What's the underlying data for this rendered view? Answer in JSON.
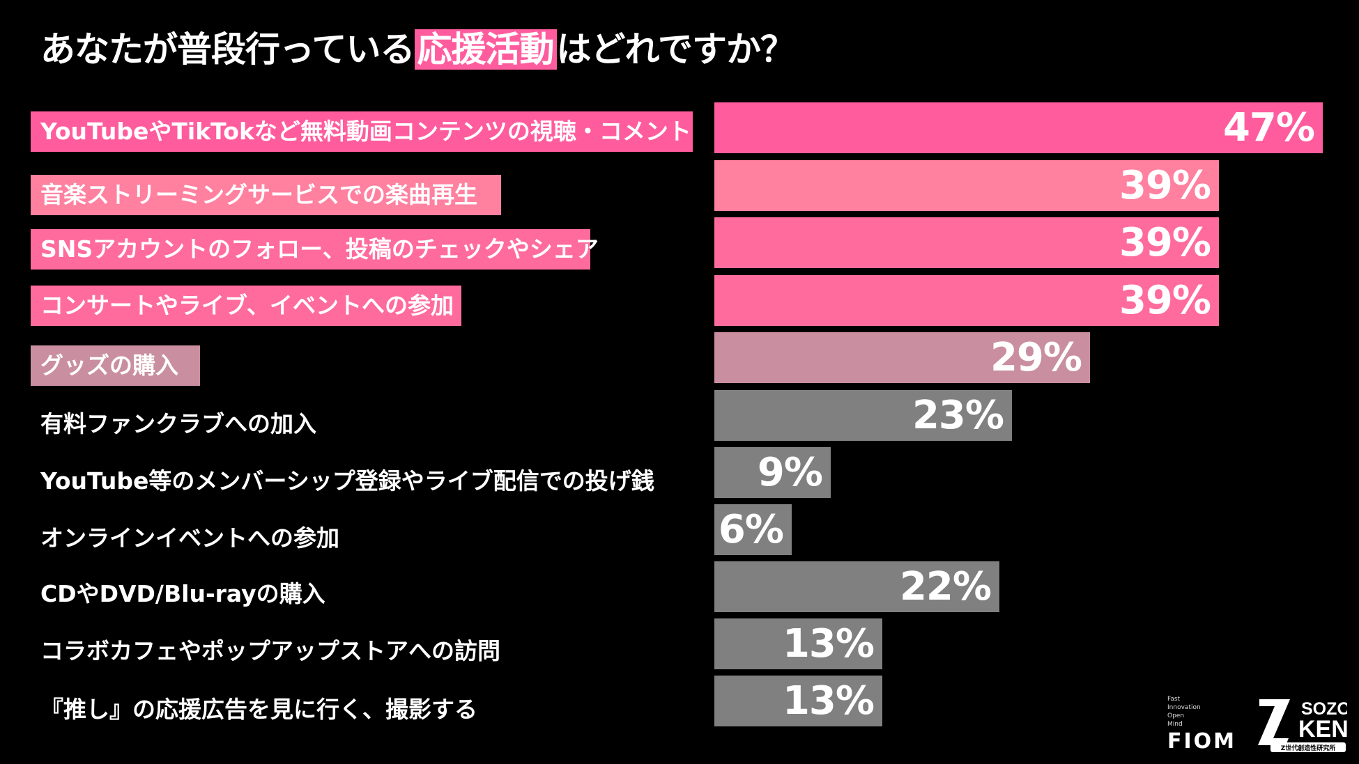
{
  "title": {
    "before": "あなたが普段行っている",
    "highlight": "応援活動",
    "after": "はどれですか？"
  },
  "chart_data": {
    "type": "bar",
    "orientation": "horizontal",
    "title": "あなたが普段行っている応援活動はどれですか？",
    "categories": [
      "YouTubeやTikTokなど無料動画コンテンツの視聴・コメント",
      "音楽ストリーミングサービスでの楽曲再生",
      "SNSアカウントのフォロー、投稿のチェックやシェア",
      "コンサートやライブ、イベントへの参加",
      "グッズの購入",
      "有料ファンクラブへの加入",
      "YouTube等のメンバーシップ登録やライブ配信での投げ銭",
      "オンラインイベントへの参加",
      "CDやDVD/Blu-rayの購入",
      "コラボカフェやポップアップストアへの訪問",
      "『推し』の応援広告を見に行く、撮影する"
    ],
    "values": [
      47,
      39,
      39,
      39,
      29,
      23,
      9,
      6,
      22,
      13,
      13
    ],
    "value_labels": [
      "47%",
      "39%",
      "39%",
      "39%",
      "29%",
      "23%",
      "9%",
      "6%",
      "22%",
      "13%",
      "13%"
    ],
    "unit": "%",
    "bar_colors": [
      "#ff5c9e",
      "#ff809f",
      "#ff6b9d",
      "#ff6b9d",
      "#c98fa0",
      "#808080",
      "#808080",
      "#808080",
      "#808080",
      "#808080",
      "#808080"
    ],
    "label_backgrounds": [
      "#ff5c9e",
      "#ff809f",
      "#ff6b9d",
      "#ff6b9d",
      "#c98fa0",
      null,
      null,
      null,
      null,
      null,
      null
    ],
    "xlim": [
      0,
      47
    ]
  },
  "logos": {
    "fiom_sub": [
      "Fast",
      "Innovation",
      "Open",
      "Mind"
    ],
    "fiom": "FIOM",
    "zken_top": "SOZO",
    "zken_mid": "KEN",
    "zken_sub": "Z世代創造性研究所"
  }
}
